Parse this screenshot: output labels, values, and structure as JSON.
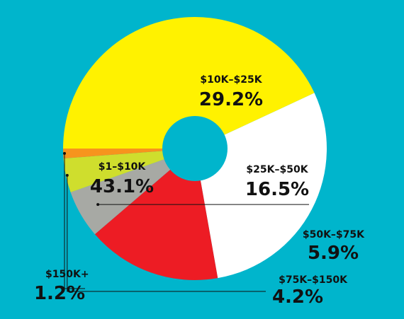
{
  "colors": {
    "background": "#00B5CC",
    "leader": "#111111"
  },
  "chart_data": {
    "type": "pie",
    "style": "donut",
    "start_angle_deg": 180,
    "direction": "clockwise",
    "slices": [
      {
        "label": "$1–$10K",
        "value": 43.1,
        "display": "43.1%",
        "color": "#FFF200"
      },
      {
        "label": "$10K–$25K",
        "value": 29.2,
        "display": "29.2%",
        "color": "#FFFFFF"
      },
      {
        "label": "$25K–$50K",
        "value": 16.5,
        "display": "16.5%",
        "color": "#ED1C24"
      },
      {
        "label": "$50K–$75K",
        "value": 5.9,
        "display": "5.9%",
        "color": "#A7A9A4"
      },
      {
        "label": "$75K–$150K",
        "value": 4.2,
        "display": "4.2%",
        "color": "#CFDE2D"
      },
      {
        "label": "$150K+",
        "value": 1.2,
        "display": "1.2%",
        "color": "#F7941D"
      }
    ],
    "title": "",
    "legend": "none (labels on and beside slices)"
  }
}
